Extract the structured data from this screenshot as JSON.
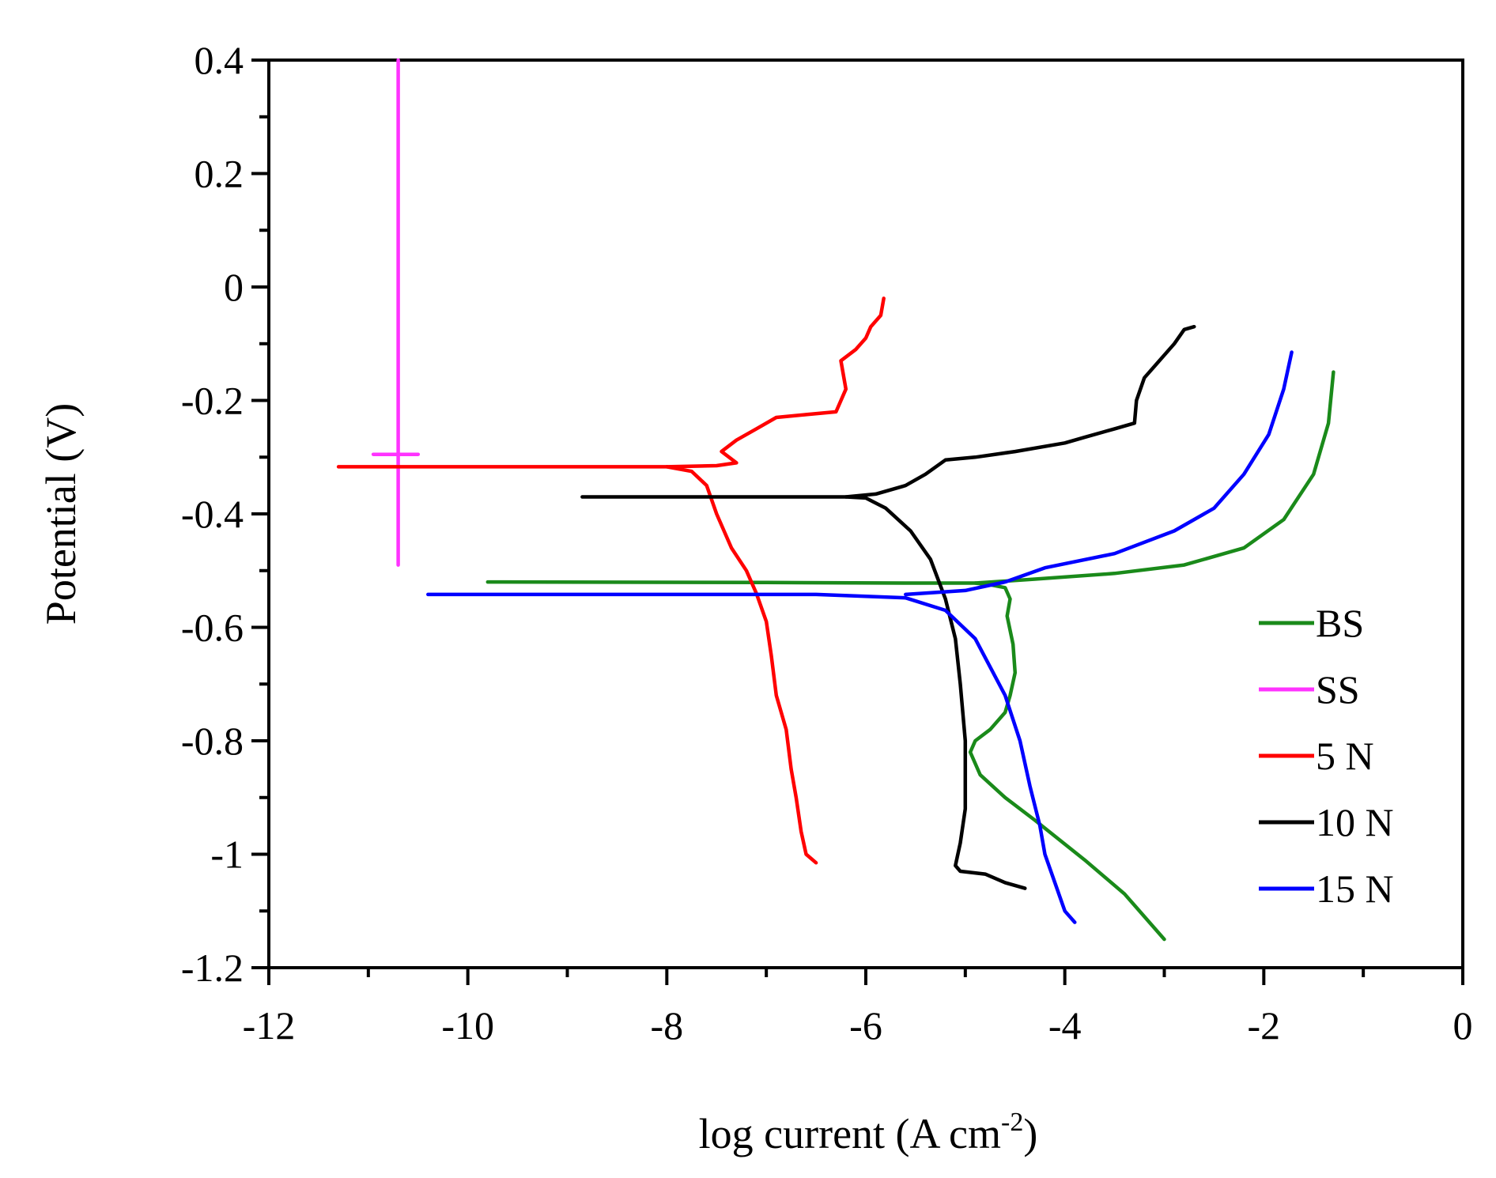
{
  "chart_data": {
    "type": "line",
    "title": "",
    "xlabel_main": "log current (A cm",
    "xlabel_sup": "-2",
    "xlabel_close": ")",
    "ylabel": "Potential (V)",
    "xlim": [
      -12,
      0
    ],
    "ylim": [
      -1.2,
      0.4
    ],
    "xticks": [
      -12,
      -10,
      -8,
      -6,
      -4,
      -2,
      0
    ],
    "yticks": [
      0.4,
      0.2,
      0,
      -0.2,
      -0.4,
      -0.6,
      -0.8,
      -1,
      -1.2
    ],
    "xtick_labels": [
      "-12",
      "-10",
      "-8",
      "-6",
      "-4",
      "-2",
      "0"
    ],
    "ytick_labels": [
      "0.4",
      "0.2",
      "0",
      "-0.2",
      "-0.4",
      "-0.6",
      "-0.8",
      "-1",
      "-1.2"
    ],
    "legend_position": "right",
    "series": [
      {
        "name": "BS",
        "color": "#1a8a1a",
        "points": [
          [
            -9.8,
            -0.52
          ],
          [
            -7.0,
            -0.521
          ],
          [
            -5.5,
            -0.522
          ],
          [
            -4.9,
            -0.522
          ],
          [
            -4.75,
            -0.525
          ],
          [
            -4.6,
            -0.53
          ],
          [
            -4.55,
            -0.55
          ],
          [
            -4.58,
            -0.58
          ],
          [
            -4.52,
            -0.63
          ],
          [
            -4.5,
            -0.68
          ],
          [
            -4.55,
            -0.72
          ],
          [
            -4.6,
            -0.75
          ],
          [
            -4.75,
            -0.78
          ],
          [
            -4.9,
            -0.8
          ],
          [
            -4.95,
            -0.82
          ],
          [
            -4.85,
            -0.86
          ],
          [
            -4.6,
            -0.9
          ],
          [
            -4.3,
            -0.94
          ],
          [
            -3.8,
            -1.01
          ],
          [
            -3.4,
            -1.07
          ],
          [
            -3.0,
            -1.15
          ]
        ],
        "points_anodic": [
          [
            -4.9,
            -0.522
          ],
          [
            -4.3,
            -0.515
          ],
          [
            -3.5,
            -0.505
          ],
          [
            -2.8,
            -0.49
          ],
          [
            -2.2,
            -0.46
          ],
          [
            -1.8,
            -0.41
          ],
          [
            -1.5,
            -0.33
          ],
          [
            -1.35,
            -0.24
          ],
          [
            -1.3,
            -0.15
          ]
        ]
      },
      {
        "name": "SS",
        "color": "#ff33ff",
        "points": [
          [
            -10.7,
            -0.49
          ],
          [
            -10.7,
            0.4
          ]
        ],
        "points_marker": [
          [
            -10.95,
            -0.295
          ],
          [
            -10.5,
            -0.295
          ]
        ]
      },
      {
        "name": "5 N",
        "color": "#ff0000",
        "points": [
          [
            -11.3,
            -0.317
          ],
          [
            -9.5,
            -0.317
          ],
          [
            -8.0,
            -0.317
          ],
          [
            -7.75,
            -0.325
          ],
          [
            -7.6,
            -0.35
          ],
          [
            -7.5,
            -0.4
          ],
          [
            -7.35,
            -0.46
          ],
          [
            -7.2,
            -0.5
          ],
          [
            -7.1,
            -0.54
          ],
          [
            -7.0,
            -0.59
          ],
          [
            -6.95,
            -0.65
          ],
          [
            -6.9,
            -0.72
          ],
          [
            -6.8,
            -0.78
          ],
          [
            -6.75,
            -0.85
          ],
          [
            -6.7,
            -0.9
          ],
          [
            -6.65,
            -0.96
          ],
          [
            -6.6,
            -1.0
          ],
          [
            -6.5,
            -1.015
          ]
        ],
        "points_anodic": [
          [
            -8.0,
            -0.317
          ],
          [
            -7.5,
            -0.315
          ],
          [
            -7.3,
            -0.31
          ],
          [
            -7.45,
            -0.29
          ],
          [
            -7.3,
            -0.27
          ],
          [
            -7.1,
            -0.25
          ],
          [
            -6.9,
            -0.23
          ],
          [
            -6.6,
            -0.225
          ],
          [
            -6.3,
            -0.22
          ],
          [
            -6.2,
            -0.18
          ],
          [
            -6.25,
            -0.13
          ],
          [
            -6.1,
            -0.11
          ],
          [
            -6.0,
            -0.09
          ],
          [
            -5.95,
            -0.07
          ],
          [
            -5.85,
            -0.05
          ],
          [
            -5.82,
            -0.02
          ]
        ]
      },
      {
        "name": "10 N",
        "color": "#000000",
        "points": [
          [
            -8.85,
            -0.37
          ],
          [
            -7.0,
            -0.37
          ],
          [
            -6.2,
            -0.37
          ],
          [
            -6.0,
            -0.372
          ],
          [
            -5.8,
            -0.39
          ],
          [
            -5.55,
            -0.43
          ],
          [
            -5.35,
            -0.48
          ],
          [
            -5.2,
            -0.55
          ],
          [
            -5.1,
            -0.62
          ],
          [
            -5.05,
            -0.7
          ],
          [
            -5.0,
            -0.8
          ],
          [
            -5.0,
            -0.92
          ],
          [
            -5.05,
            -0.98
          ],
          [
            -5.1,
            -1.02
          ],
          [
            -5.05,
            -1.03
          ],
          [
            -4.8,
            -1.035
          ],
          [
            -4.6,
            -1.05
          ],
          [
            -4.4,
            -1.06
          ]
        ],
        "points_anodic": [
          [
            -6.2,
            -0.37
          ],
          [
            -5.9,
            -0.365
          ],
          [
            -5.6,
            -0.35
          ],
          [
            -5.4,
            -0.33
          ],
          [
            -5.2,
            -0.305
          ],
          [
            -4.9,
            -0.3
          ],
          [
            -4.5,
            -0.29
          ],
          [
            -4.0,
            -0.275
          ],
          [
            -3.8,
            -0.265
          ],
          [
            -3.5,
            -0.25
          ],
          [
            -3.3,
            -0.24
          ],
          [
            -3.28,
            -0.2
          ],
          [
            -3.2,
            -0.16
          ],
          [
            -3.1,
            -0.14
          ],
          [
            -2.9,
            -0.1
          ],
          [
            -2.8,
            -0.075
          ],
          [
            -2.7,
            -0.07
          ]
        ]
      },
      {
        "name": "15 N",
        "color": "#0000ff",
        "points": [
          [
            -10.4,
            -0.542
          ],
          [
            -8.0,
            -0.542
          ],
          [
            -6.5,
            -0.542
          ],
          [
            -5.6,
            -0.548
          ],
          [
            -5.2,
            -0.57
          ],
          [
            -4.9,
            -0.62
          ],
          [
            -4.6,
            -0.72
          ],
          [
            -4.45,
            -0.8
          ],
          [
            -4.35,
            -0.88
          ],
          [
            -4.25,
            -0.95
          ],
          [
            -4.2,
            -1.0
          ],
          [
            -4.1,
            -1.05
          ],
          [
            -4.0,
            -1.1
          ],
          [
            -3.9,
            -1.12
          ]
        ],
        "points_anodic": [
          [
            -5.6,
            -0.542
          ],
          [
            -5.0,
            -0.535
          ],
          [
            -4.6,
            -0.52
          ],
          [
            -4.2,
            -0.495
          ],
          [
            -3.5,
            -0.47
          ],
          [
            -2.9,
            -0.43
          ],
          [
            -2.5,
            -0.39
          ],
          [
            -2.2,
            -0.33
          ],
          [
            -1.95,
            -0.26
          ],
          [
            -1.8,
            -0.18
          ],
          [
            -1.72,
            -0.115
          ]
        ]
      }
    ]
  }
}
